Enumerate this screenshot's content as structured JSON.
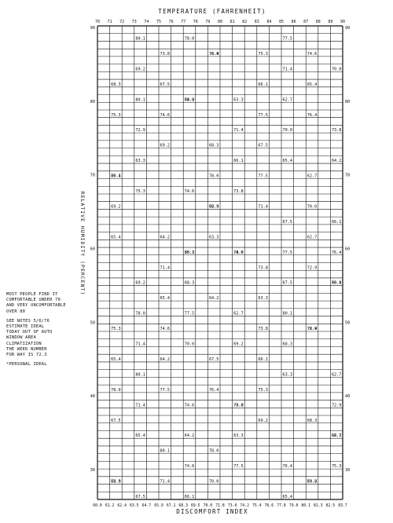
{
  "sheet": {
    "top_title": "TEMPERATURE (FAHRENHEIT)",
    "bottom_title": "DISCOMFORT INDEX",
    "side_title": "RELATIVE HUMIDITY (PERCENT)",
    "top_ticks": [
      "70",
      "71",
      "72",
      "73",
      "74",
      "75",
      "76",
      "77",
      "78",
      "79",
      "80",
      "81",
      "82",
      "83",
      "84",
      "85",
      "86",
      "87",
      "88",
      "89",
      "90"
    ],
    "bottom_ticks": [
      "60.0",
      "61.2",
      "62.4",
      "63.5",
      "64.7",
      "65.9",
      "67.1",
      "68.3",
      "69.5",
      "70.0",
      "71.8",
      "73.0",
      "74.2",
      "75.4",
      "76.6",
      "77.8",
      "79.0",
      "80.1",
      "81.3",
      "82.5",
      "83.7"
    ],
    "left_ticks": [
      "90",
      "80",
      "70",
      "60",
      "50",
      "40",
      "30"
    ],
    "right_ticks": [
      "90",
      "80",
      "70",
      "60",
      "50",
      "40",
      "30"
    ],
    "row_values": [
      "80.1",
      "78.0",
      "77.5",
      "76.4",
      "75.3",
      "74.6",
      "73.8",
      "72.9",
      "71.4",
      "70.0",
      "69.2",
      "68.3",
      "67.5",
      "66.1",
      "65.4",
      "64.2",
      "63.3",
      "62.7"
    ]
  },
  "notes": [
    [
      "MOST PEOPLE FIND IT",
      "COMFORTABLE UNDER 70",
      "AND VERY UNCOMFORTABLE",
      "OVER 80"
    ],
    [
      "SEE NOTES 5/6/76",
      "ESTIMATE IDEAL",
      "TODAY OUT OF AUTO",
      "WINDOW AREA",
      "CLIMATIZATION",
      "THE WEEK NUMBER",
      "FOR WAY IS 72.3"
    ],
    [
      "*PERSONAL IDEAL"
    ]
  ]
}
